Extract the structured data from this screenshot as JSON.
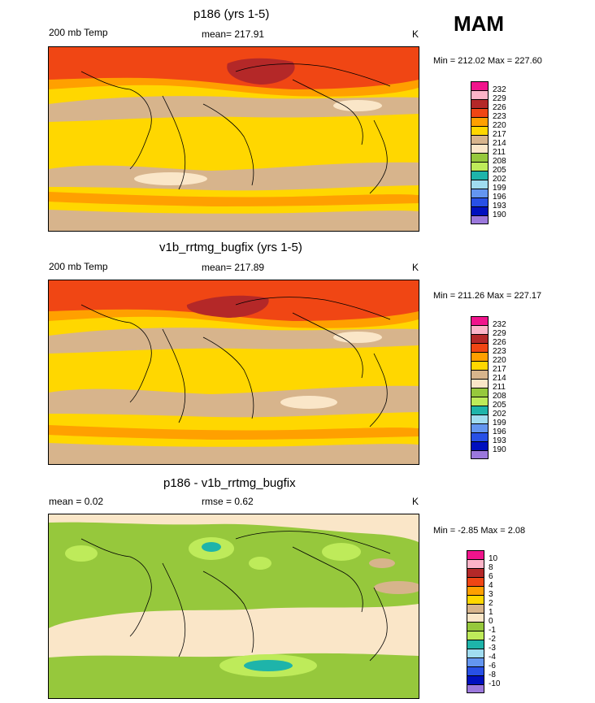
{
  "season": "MAM",
  "chart_data": [
    {
      "type": "heatmap",
      "title": "p186 (yrs 1-5)",
      "left_label": "200 mb Temp",
      "stat_label": "mean= 217.91",
      "units": "K",
      "minmax": "Min = 212.02 Max = 227.60",
      "levels": [
        "232",
        "229",
        "226",
        "223",
        "220",
        "217",
        "214",
        "211",
        "208",
        "205",
        "202",
        "199",
        "196",
        "193",
        "190"
      ],
      "colors": [
        "#f0148c",
        "#fcb4c8",
        "#b42828",
        "#f04614",
        "#ffa000",
        "#ffd700",
        "#d7b48c",
        "#fae6c8",
        "#96c83c",
        "#beeb5a",
        "#1eb4aa",
        "#a0dcf0",
        "#6496f0",
        "#2850e6",
        "#000fbe",
        "#9b78dc"
      ]
    },
    {
      "type": "heatmap",
      "title": "v1b_rrtmg_bugfix (yrs 1-5)",
      "left_label": "200 mb Temp",
      "stat_label": "mean= 217.89",
      "units": "K",
      "minmax": "Min = 211.26 Max = 227.17",
      "levels": [
        "232",
        "229",
        "226",
        "223",
        "220",
        "217",
        "214",
        "211",
        "208",
        "205",
        "202",
        "199",
        "196",
        "193",
        "190"
      ],
      "colors": [
        "#f0148c",
        "#fcb4c8",
        "#b42828",
        "#f04614",
        "#ffa000",
        "#ffd700",
        "#d7b48c",
        "#fae6c8",
        "#96c83c",
        "#beeb5a",
        "#1eb4aa",
        "#a0dcf0",
        "#6496f0",
        "#2850e6",
        "#000fbe",
        "#9b78dc"
      ]
    },
    {
      "type": "heatmap",
      "title": "p186 - v1b_rrtmg_bugfix",
      "left_label": "mean =   0.02",
      "stat_label": "rmse =   0.62",
      "units": "K",
      "minmax": "Min =  -2.85 Max =   2.08",
      "levels": [
        "10",
        "8",
        "6",
        "4",
        "3",
        "2",
        "1",
        "0",
        "-1",
        "-2",
        "-3",
        "-4",
        "-6",
        "-8",
        "-10"
      ],
      "colors": [
        "#f0148c",
        "#fcb4c8",
        "#b42828",
        "#f04614",
        "#ffa000",
        "#ffd700",
        "#d7b48c",
        "#fae6c8",
        "#96c83c",
        "#beeb5a",
        "#1eb4aa",
        "#a0dcf0",
        "#6496f0",
        "#2850e6",
        "#000fbe",
        "#9b78dc"
      ]
    }
  ]
}
